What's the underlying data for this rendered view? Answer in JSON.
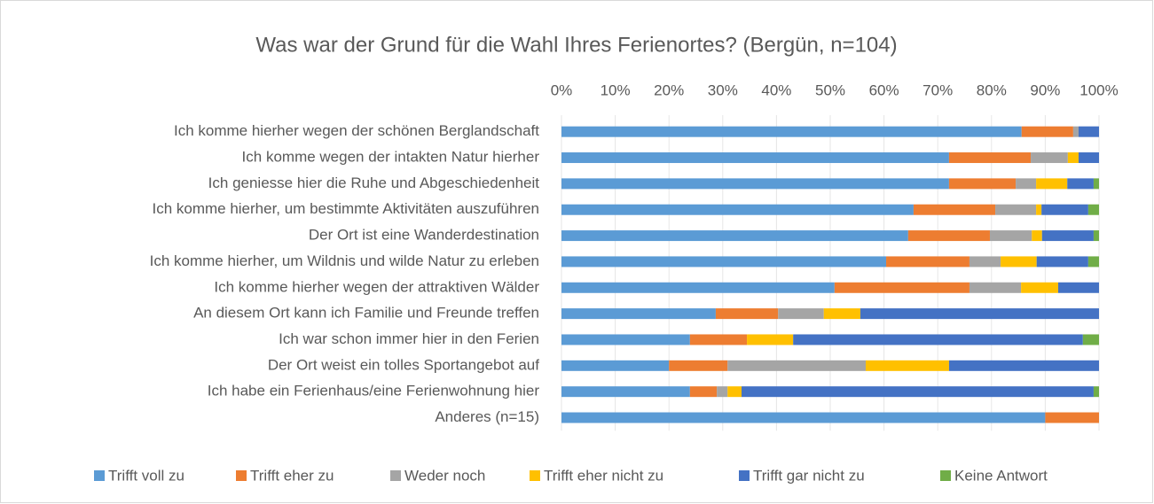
{
  "chart_data": {
    "type": "stacked_barh",
    "title": "Was war der Grund für die Wahl Ihres Ferienortes? (Bergün, n=104)",
    "categories": [
      "Ich komme hierher wegen der schönen Berglandschaft",
      "Ich komme wegen der intakten Natur hierher",
      "Ich geniesse hier die Ruhe und Abgeschiedenheit",
      "Ich komme hierher, um bestimmte Aktivitäten auszuführen",
      "Der Ort ist eine Wanderdestination",
      "Ich komme hierher, um Wildnis und wilde Natur zu erleben",
      "Ich komme hierher wegen der attraktiven Wälder",
      "An diesem Ort kann ich Familie und Freunde treffen",
      "Ich war schon immer hier in den Ferien",
      "Der Ort weist ein tolles Sportangebot auf",
      "Ich habe ein Ferienhaus/eine Ferienwohnung hier",
      "Anderes (n=15)"
    ],
    "series": [
      {
        "name": "Trifft voll zu",
        "color": "#5B9BD5",
        "values": [
          85.6,
          72.1,
          72.1,
          65.5,
          64.5,
          60.4,
          50.8,
          28.7,
          23.9,
          20.0,
          23.9,
          90
        ]
      },
      {
        "name": "Trifft eher zu",
        "color": "#ED7D31",
        "values": [
          9.6,
          15.2,
          12.4,
          15.2,
          15.2,
          15.5,
          25.1,
          11.6,
          10.6,
          10.9,
          5.0,
          10
        ]
      },
      {
        "name": "Weder noch",
        "color": "#A5A5A5",
        "values": [
          1.0,
          6.9,
          3.8,
          7.6,
          7.8,
          5.8,
          9.6,
          8.5,
          0,
          25.7,
          2.0,
          0
        ]
      },
      {
        "name": "Trifft eher nicht zu",
        "color": "#FFC000",
        "values": [
          0,
          2.0,
          5.8,
          1.0,
          1.9,
          6.7,
          6.9,
          6.8,
          8.6,
          15.5,
          2.6,
          0
        ]
      },
      {
        "name": "Trifft gar nicht zu",
        "color": "#4472C4",
        "values": [
          3.8,
          3.8,
          4.9,
          8.7,
          9.6,
          9.6,
          7.6,
          44.4,
          53.9,
          27.9,
          65.5,
          0
        ]
      },
      {
        "name": "Keine Antwort",
        "color": "#70AD47",
        "values": [
          0,
          0,
          1.0,
          2.0,
          1.0,
          2.0,
          0,
          0,
          3.0,
          0,
          1.0,
          0
        ]
      }
    ],
    "xlim": [
      0,
      100
    ],
    "xticks": [
      {
        "value": 0,
        "label": "0%"
      },
      {
        "value": 10,
        "label": "10%"
      },
      {
        "value": 20,
        "label": "20%"
      },
      {
        "value": 30,
        "label": "30%"
      },
      {
        "value": 40,
        "label": "40%"
      },
      {
        "value": 50,
        "label": "50%"
      },
      {
        "value": 60,
        "label": "60%"
      },
      {
        "value": 70,
        "label": "70%"
      },
      {
        "value": 80,
        "label": "80%"
      },
      {
        "value": 90,
        "label": "90%"
      },
      {
        "value": 100,
        "label": "100%"
      }
    ],
    "grid": true,
    "legend": "bottom"
  }
}
